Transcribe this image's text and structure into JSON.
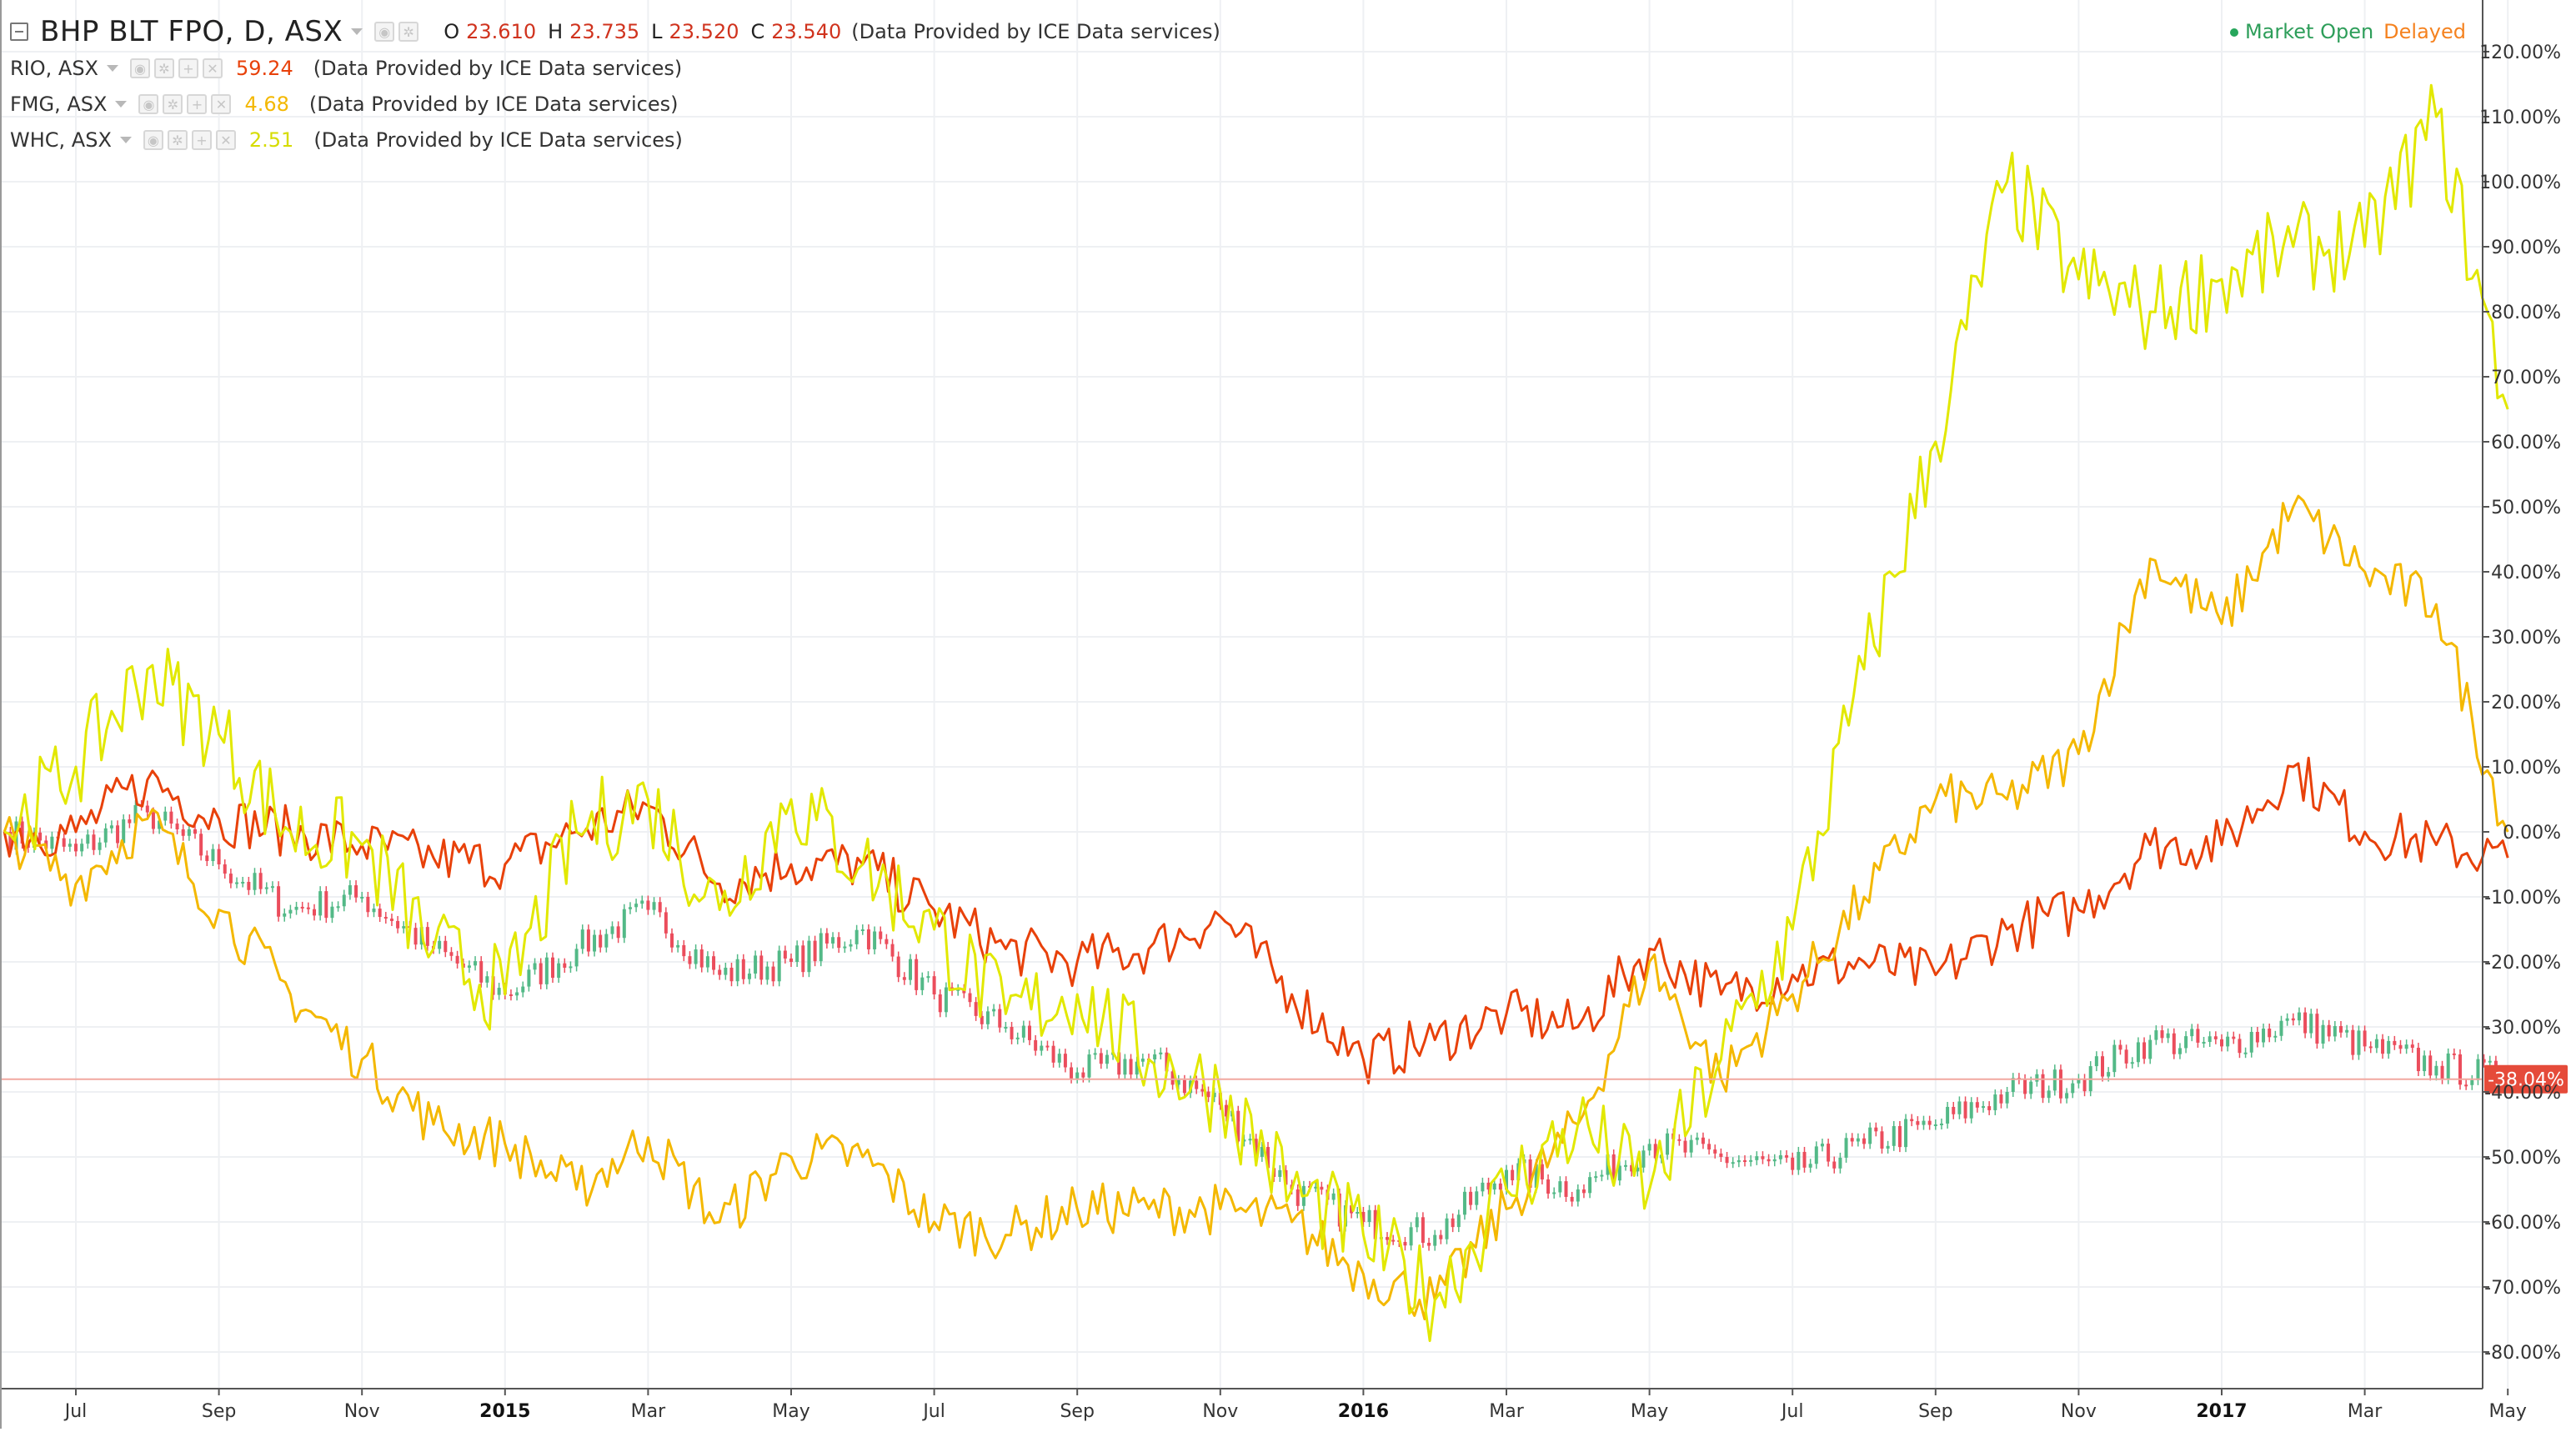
{
  "legend": {
    "main": {
      "symbol": "BHP BLT FPO, D, ASX",
      "o_label": "O",
      "o": "23.610",
      "h_label": "H",
      "h": "23.735",
      "l_label": "L",
      "l": "23.520",
      "c_label": "C",
      "c": "23.540",
      "provider": "(Data Provided by ICE Data services)"
    },
    "compare": [
      {
        "symbol": "RIO, ASX",
        "value": "59.24",
        "provider": "(Data Provided by ICE Data services)",
        "color": "#e8410a"
      },
      {
        "symbol": "FMG, ASX",
        "value": "4.68",
        "provider": "(Data Provided by ICE Data services)",
        "color": "#f4b800"
      },
      {
        "symbol": "WHC, ASX",
        "value": "2.51",
        "provider": "(Data Provided by ICE Data services)",
        "color": "#e2e800"
      }
    ]
  },
  "status": {
    "market_open": "Market Open",
    "delayed": "Delayed"
  },
  "price_label": "-38.04%",
  "chart_data": {
    "type": "line",
    "y_unit": "percent change",
    "ylim": [
      -84,
      122
    ],
    "y_ticks": [
      "120.00%",
      "110.00%",
      "100.00%",
      "90.00%",
      "80.00%",
      "70.00%",
      "60.00%",
      "50.00%",
      "40.00%",
      "30.00%",
      "20.00%",
      "10.00%",
      "0.00%",
      "-10.00%",
      "-20.00%",
      "-30.00%",
      "-40.00%",
      "-50.00%",
      "-60.00%",
      "-70.00%",
      "-80.00%"
    ],
    "y_tick_values": [
      120,
      110,
      100,
      90,
      80,
      70,
      60,
      50,
      40,
      30,
      20,
      10,
      0,
      -10,
      -20,
      -30,
      -40,
      -50,
      -60,
      -70,
      -80
    ],
    "x_tick_labels": [
      "Jul",
      "Sep",
      "Nov",
      "2015",
      "Mar",
      "May",
      "Jul",
      "Sep",
      "Nov",
      "2016",
      "Mar",
      "May",
      "Jul",
      "Sep",
      "Nov",
      "2017",
      "Mar",
      "May"
    ],
    "x_tick_dates": [
      "2014-07",
      "2014-09",
      "2014-11",
      "2015-01",
      "2015-03",
      "2015-05",
      "2015-07",
      "2015-09",
      "2015-11",
      "2016-01",
      "2016-03",
      "2016-05",
      "2016-07",
      "2016-09",
      "2016-11",
      "2017-01",
      "2017-03",
      "2017-05"
    ],
    "x_range": [
      "2014-06",
      "2017-05"
    ],
    "grid": true,
    "series": [
      {
        "name": "BHP BLT FPO",
        "style": "candles",
        "up_color": "#53b987",
        "down_color": "#eb4d5c",
        "values": [
          [
            "2014-06",
            0
          ],
          [
            "2014-07",
            -3
          ],
          [
            "2014-08",
            3
          ],
          [
            "2014-09",
            -5
          ],
          [
            "2014-10",
            -12
          ],
          [
            "2014-11",
            -10
          ],
          [
            "2014-12",
            -18
          ],
          [
            "2015-01",
            -25
          ],
          [
            "2015-02",
            -18
          ],
          [
            "2015-03",
            -12
          ],
          [
            "2015-04",
            -22
          ],
          [
            "2015-05",
            -20
          ],
          [
            "2015-06",
            -15
          ],
          [
            "2015-07",
            -25
          ],
          [
            "2015-08",
            -30
          ],
          [
            "2015-09",
            -37
          ],
          [
            "2015-10",
            -35
          ],
          [
            "2015-11",
            -42
          ],
          [
            "2015-12",
            -55
          ],
          [
            "2016-01",
            -60
          ],
          [
            "2016-02",
            -62
          ],
          [
            "2016-03",
            -52
          ],
          [
            "2016-04",
            -55
          ],
          [
            "2016-05",
            -48
          ],
          [
            "2016-06",
            -50
          ],
          [
            "2016-07",
            -52
          ],
          [
            "2016-08",
            -48
          ],
          [
            "2016-09",
            -45
          ],
          [
            "2016-10",
            -40
          ],
          [
            "2016-11",
            -38
          ],
          [
            "2016-12",
            -32
          ],
          [
            "2017-01",
            -33
          ],
          [
            "2017-02",
            -29
          ],
          [
            "2017-03",
            -33
          ],
          [
            "2017-04",
            -36
          ],
          [
            "2017-05",
            -38
          ]
        ]
      },
      {
        "name": "RIO",
        "color": "#e8410a",
        "values": [
          [
            "2014-06",
            0
          ],
          [
            "2014-07",
            0
          ],
          [
            "2014-08",
            8
          ],
          [
            "2014-09",
            2
          ],
          [
            "2014-10",
            0
          ],
          [
            "2014-11",
            -2
          ],
          [
            "2014-12",
            -4
          ],
          [
            "2015-01",
            -5
          ],
          [
            "2015-02",
            0
          ],
          [
            "2015-03",
            4
          ],
          [
            "2015-04",
            -8
          ],
          [
            "2015-05",
            -5
          ],
          [
            "2015-06",
            -5
          ],
          [
            "2015-07",
            -12
          ],
          [
            "2015-08",
            -18
          ],
          [
            "2015-09",
            -20
          ],
          [
            "2015-10",
            -18
          ],
          [
            "2015-11",
            -13
          ],
          [
            "2015-12",
            -25
          ],
          [
            "2016-01",
            -35
          ],
          [
            "2016-02",
            -32
          ],
          [
            "2016-03",
            -28
          ],
          [
            "2016-04",
            -30
          ],
          [
            "2016-05",
            -18
          ],
          [
            "2016-06",
            -25
          ],
          [
            "2016-07",
            -22
          ],
          [
            "2016-08",
            -20
          ],
          [
            "2016-09",
            -22
          ],
          [
            "2016-10",
            -15
          ],
          [
            "2016-11",
            -12
          ],
          [
            "2016-12",
            -2
          ],
          [
            "2017-01",
            -2
          ],
          [
            "2017-02",
            10
          ],
          [
            "2017-03",
            0
          ],
          [
            "2017-04",
            -2
          ],
          [
            "2017-05",
            -4
          ]
        ]
      },
      {
        "name": "FMG",
        "color": "#f4b800",
        "values": [
          [
            "2014-06",
            0
          ],
          [
            "2014-07",
            -8
          ],
          [
            "2014-08",
            2
          ],
          [
            "2014-09",
            -12
          ],
          [
            "2014-10",
            -25
          ],
          [
            "2014-11",
            -35
          ],
          [
            "2014-12",
            -45
          ],
          [
            "2015-01",
            -48
          ],
          [
            "2015-02",
            -55
          ],
          [
            "2015-03",
            -47
          ],
          [
            "2015-04",
            -60
          ],
          [
            "2015-05",
            -50
          ],
          [
            "2015-06",
            -50
          ],
          [
            "2015-07",
            -60
          ],
          [
            "2015-08",
            -62
          ],
          [
            "2015-09",
            -58
          ],
          [
            "2015-10",
            -58
          ],
          [
            "2015-11",
            -58
          ],
          [
            "2015-12",
            -60
          ],
          [
            "2016-01",
            -68
          ],
          [
            "2016-02",
            -72
          ],
          [
            "2016-03",
            -58
          ],
          [
            "2016-04",
            -45
          ],
          [
            "2016-05",
            -20
          ],
          [
            "2016-06",
            -38
          ],
          [
            "2016-07",
            -25
          ],
          [
            "2016-08",
            -10
          ],
          [
            "2016-09",
            5
          ],
          [
            "2016-10",
            5
          ],
          [
            "2016-11",
            12
          ],
          [
            "2016-12",
            42
          ],
          [
            "2017-01",
            32
          ],
          [
            "2017-02",
            50
          ],
          [
            "2017-03",
            40
          ],
          [
            "2017-04",
            35
          ],
          [
            "2017-05",
            0
          ]
        ]
      },
      {
        "name": "WHC",
        "color": "#e2e800",
        "values": [
          [
            "2014-06",
            0
          ],
          [
            "2014-07",
            10
          ],
          [
            "2014-08",
            25
          ],
          [
            "2014-09",
            15
          ],
          [
            "2014-10",
            0
          ],
          [
            "2014-11",
            -2
          ],
          [
            "2014-12",
            -18
          ],
          [
            "2015-01",
            -25
          ],
          [
            "2015-02",
            0
          ],
          [
            "2015-03",
            5
          ],
          [
            "2015-04",
            -12
          ],
          [
            "2015-05",
            5
          ],
          [
            "2015-06",
            -5
          ],
          [
            "2015-07",
            -15
          ],
          [
            "2015-08",
            -28
          ],
          [
            "2015-09",
            -25
          ],
          [
            "2015-10",
            -35
          ],
          [
            "2015-11",
            -40
          ],
          [
            "2015-12",
            -55
          ],
          [
            "2016-01",
            -62
          ],
          [
            "2016-02",
            -72
          ],
          [
            "2016-03",
            -55
          ],
          [
            "2016-04",
            -45
          ],
          [
            "2016-05",
            -55
          ],
          [
            "2016-06",
            -35
          ],
          [
            "2016-07",
            -15
          ],
          [
            "2016-08",
            25
          ],
          [
            "2016-09",
            60
          ],
          [
            "2016-10",
            100
          ],
          [
            "2016-11",
            85
          ],
          [
            "2016-12",
            80
          ],
          [
            "2017-01",
            85
          ],
          [
            "2017-02",
            90
          ],
          [
            "2017-03",
            90
          ],
          [
            "2017-04",
            110
          ],
          [
            "2017-05",
            65
          ]
        ]
      }
    ]
  }
}
